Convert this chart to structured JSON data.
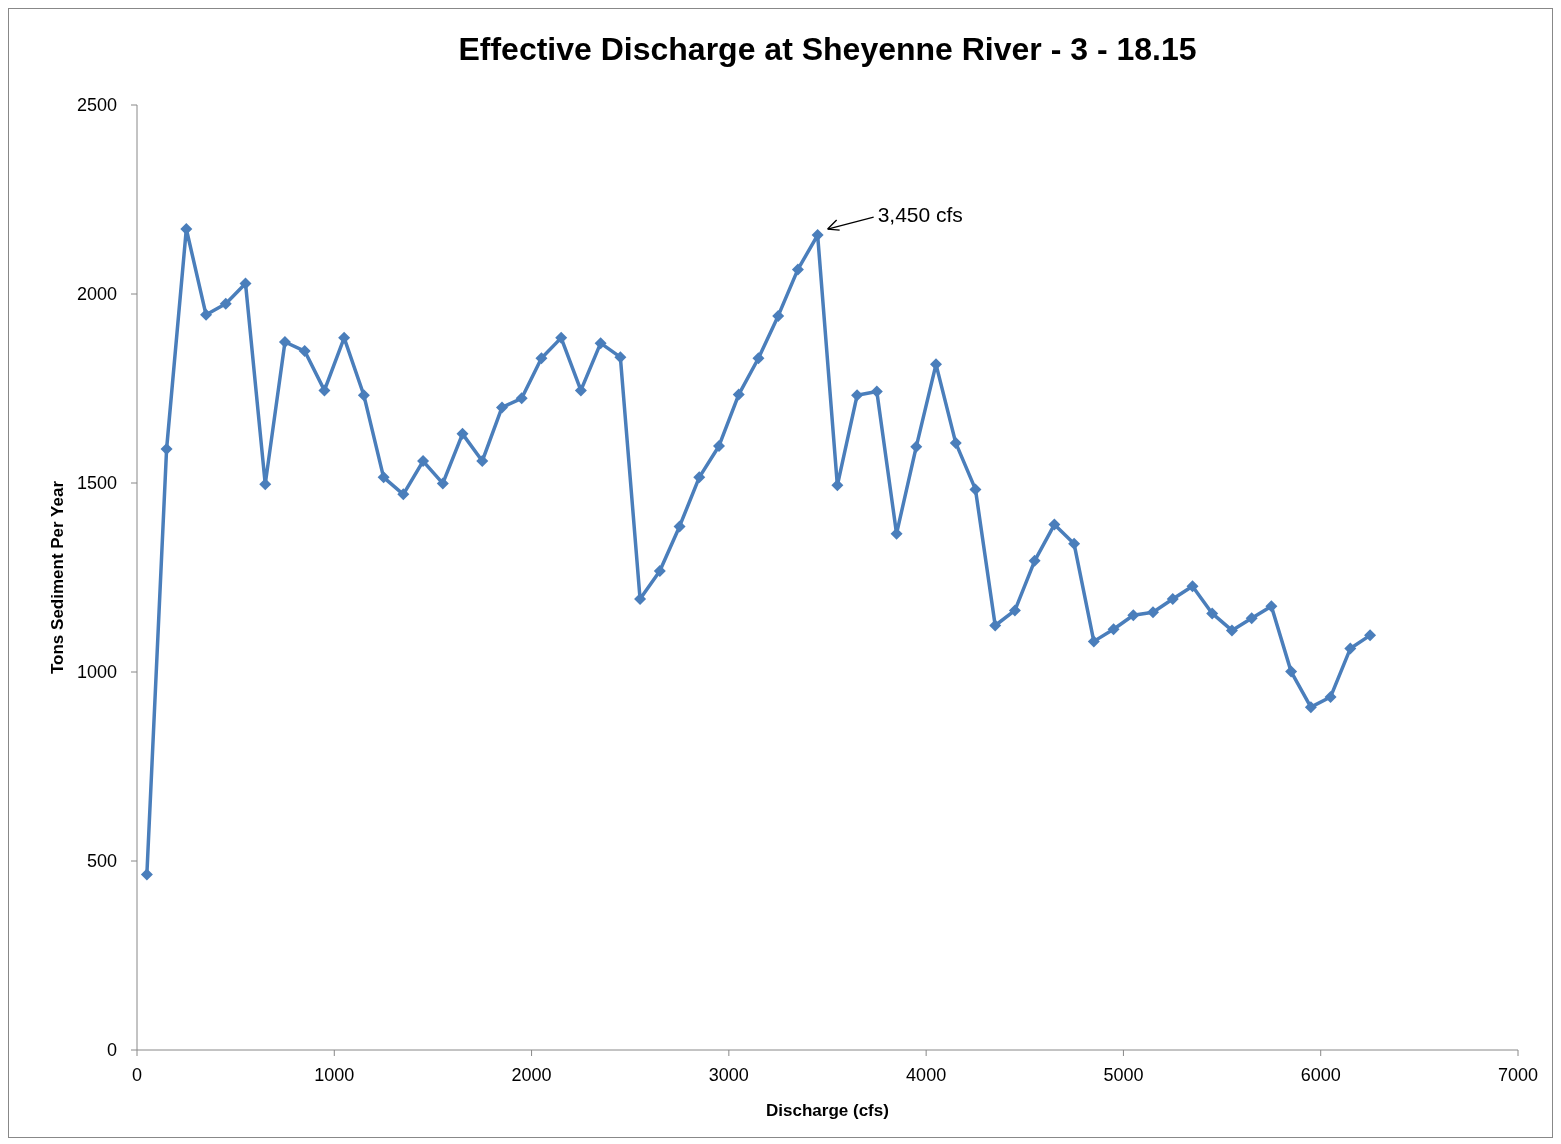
{
  "chart_data": {
    "type": "line",
    "title": "Effective Discharge at Sheyenne River - 3 - 18.15",
    "xlabel": "Discharge (cfs)",
    "ylabel": "Tons Sediment Per Year",
    "x": [
      50,
      150,
      250,
      350,
      450,
      550,
      650,
      750,
      850,
      950,
      1050,
      1150,
      1250,
      1350,
      1450,
      1550,
      1650,
      1750,
      1850,
      1950,
      2050,
      2150,
      2250,
      2350,
      2450,
      2550,
      2650,
      2750,
      2850,
      2950,
      3050,
      3150,
      3250,
      3350,
      3450,
      3550,
      3650,
      3750,
      3850,
      3950,
      4050,
      4150,
      4250,
      4350,
      4450,
      4550,
      4650,
      4750,
      4850,
      4950,
      5050,
      5150,
      5250,
      5350,
      5450,
      5550,
      5650,
      5750,
      5850,
      5950,
      6050,
      6150,
      6250
    ],
    "series": [
      {
        "color": "#4a7ebb",
        "values": [
          464,
          1590,
          2172,
          1945,
          1974,
          2028,
          1497,
          1873,
          1849,
          1745,
          1884,
          1732,
          1515,
          1470,
          1558,
          1499,
          1630,
          1558,
          1700,
          1724,
          1830,
          1884,
          1745,
          1870,
          1833,
          1193,
          1267,
          1385,
          1515,
          1598,
          1734,
          1830,
          1942,
          2065,
          2156,
          1494,
          1732,
          1742,
          1366,
          1596,
          1814,
          1606,
          1483,
          1123,
          1163,
          1294,
          1390,
          1339,
          1081,
          1113,
          1150,
          1158,
          1193,
          1227,
          1155,
          1110,
          1142,
          1174,
          1001,
          907,
          934,
          1062,
          1097
        ]
      }
    ],
    "xlim": [
      0,
      7000
    ],
    "xticks": [
      0,
      1000,
      2000,
      3000,
      4000,
      5000,
      6000,
      7000
    ],
    "ylim": [
      0,
      2500
    ],
    "yticks": [
      0,
      500,
      1000,
      1500,
      2000,
      2500
    ],
    "marker": "diamond",
    "line_style": "solid",
    "annotations": [
      {
        "text": "3,450 cfs",
        "x": 3450,
        "y": 2156
      }
    ]
  }
}
